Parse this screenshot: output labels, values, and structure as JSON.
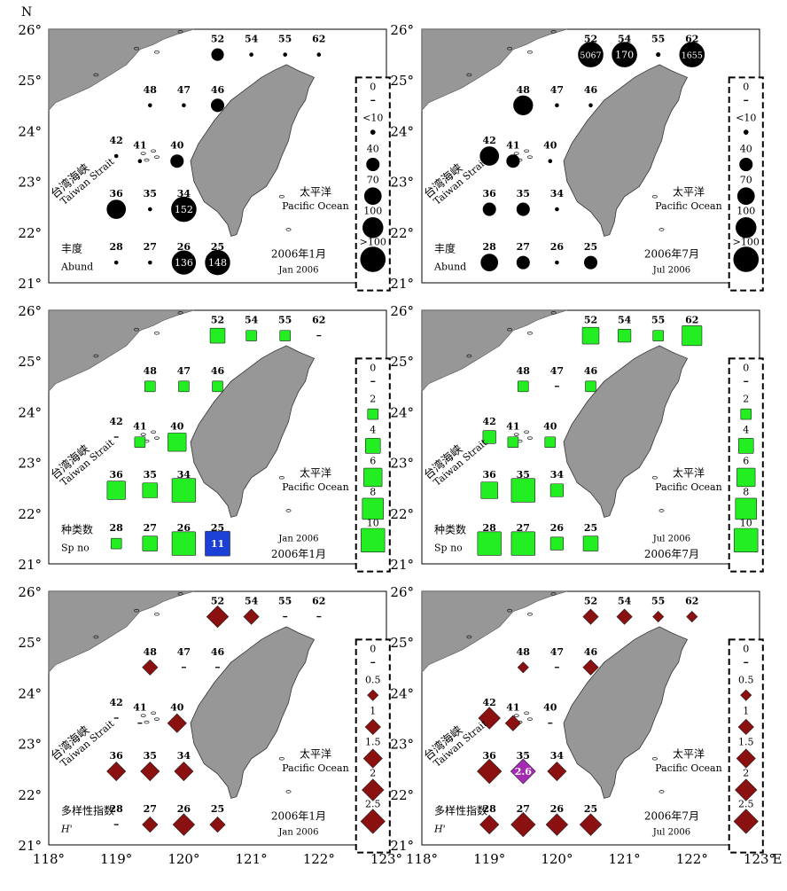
{
  "axis": {
    "n_label": "N",
    "e_label": "E",
    "lat_labels": [
      "26°",
      "25°",
      "24°",
      "23°",
      "22°",
      "21°"
    ],
    "lon_labels": [
      "118°",
      "119°",
      "120°",
      "121°",
      "122°",
      "123°"
    ]
  },
  "region_labels": {
    "strait_cn": "台湾海峡",
    "strait_en": "Taiwan Strait",
    "ocean_cn": "太平洋",
    "ocean_en": "Pacific Ocean"
  },
  "colors": {
    "land": "#979797",
    "abundance_marker": "#000000",
    "species_marker": "#22ee22",
    "diversity_marker": "#8b1010",
    "highlight_blue": "#1c3fd6",
    "highlight_purple": "#a52bb3"
  },
  "stations": [
    {
      "id": "52",
      "lon": 120.5,
      "lat": 25.5
    },
    {
      "id": "54",
      "lon": 121.0,
      "lat": 25.5
    },
    {
      "id": "55",
      "lon": 121.5,
      "lat": 25.5
    },
    {
      "id": "62",
      "lon": 122.0,
      "lat": 25.5
    },
    {
      "id": "48",
      "lon": 119.5,
      "lat": 24.5
    },
    {
      "id": "47",
      "lon": 120.0,
      "lat": 24.5
    },
    {
      "id": "46",
      "lon": 120.5,
      "lat": 24.5
    },
    {
      "id": "42",
      "lon": 119.0,
      "lat": 23.5
    },
    {
      "id": "41",
      "lon": 119.35,
      "lat": 23.4
    },
    {
      "id": "40",
      "lon": 119.9,
      "lat": 23.4
    },
    {
      "id": "36",
      "lon": 119.0,
      "lat": 22.45
    },
    {
      "id": "35",
      "lon": 119.5,
      "lat": 22.45
    },
    {
      "id": "34",
      "lon": 120.0,
      "lat": 22.45
    },
    {
      "id": "28",
      "lon": 119.0,
      "lat": 21.4
    },
    {
      "id": "27",
      "lon": 119.5,
      "lat": 21.4
    },
    {
      "id": "26",
      "lon": 120.0,
      "lat": 21.4
    },
    {
      "id": "25",
      "lon": 120.5,
      "lat": 21.4
    }
  ],
  "panels": [
    {
      "metric": "abundance",
      "shape": "circle",
      "legend_title_cn": "丰度",
      "legend_title_en": "Abund",
      "date_cn": "2006年1月",
      "date_en": "Jan 2006",
      "legend": {
        "labels": [
          "0",
          "<10",
          "40",
          "70",
          "100",
          ">100"
        ],
        "values": [
          0,
          5,
          40,
          70,
          100,
          150
        ],
        "max": 150
      },
      "values": {
        "52": 35,
        "54": 3,
        "55": 3,
        "62": 2,
        "48": 3,
        "47": 3,
        "46": 40,
        "42": 2,
        "41": 3,
        "40": 40,
        "36": 85,
        "35": 3,
        "34": 152,
        "28": 3,
        "27": 3,
        "26": 136,
        "25": 148
      },
      "annotations": [
        {
          "station": "34",
          "text": "152"
        },
        {
          "station": "26",
          "text": "136"
        },
        {
          "station": "25",
          "text": "148"
        }
      ]
    },
    {
      "metric": "abundance",
      "shape": "circle",
      "legend_title_cn": "丰度",
      "legend_title_en": "Abund",
      "date_cn": "2006年7月",
      "date_en": "Jul 2006",
      "legend": {
        "labels": [
          "0",
          "<10",
          "40",
          "70",
          "100",
          ">100"
        ],
        "values": [
          0,
          5,
          40,
          70,
          100,
          150
        ],
        "max": 150
      },
      "values": {
        "52": 5067,
        "54": 170,
        "55": 4,
        "62": 1655,
        "48": 90,
        "47": 3,
        "46": 3,
        "42": 85,
        "41": 40,
        "40": 3,
        "36": 40,
        "35": 40,
        "34": 3,
        "28": 70,
        "27": 40,
        "26": 3,
        "25": 40
      },
      "annotations": [
        {
          "station": "52",
          "text": "5067"
        },
        {
          "station": "54",
          "text": "170"
        },
        {
          "station": "62",
          "text": "1655"
        }
      ]
    },
    {
      "metric": "species",
      "shape": "square",
      "legend_title_cn": "种类数",
      "legend_title_en": "Sp no",
      "date_cn": "2006年1月",
      "date_en": "Jan 2006",
      "legend": {
        "labels": [
          "0",
          "2",
          "4",
          "6",
          "8",
          "10"
        ],
        "values": [
          0,
          2,
          4,
          6,
          8,
          10
        ],
        "max": 11
      },
      "values": {
        "52": 4,
        "54": 2,
        "55": 2,
        "62": 0,
        "48": 2,
        "47": 2,
        "46": 2,
        "42": 0,
        "41": 2,
        "40": 6,
        "36": 6,
        "35": 4,
        "34": 10,
        "28": 2,
        "27": 4,
        "26": 10,
        "25": 11
      },
      "annotations": [
        {
          "station": "25",
          "text": "11"
        }
      ]
    },
    {
      "metric": "species",
      "shape": "square",
      "legend_title_cn": "种类数",
      "legend_title_en": "Sp no",
      "date_cn": "2006年7月",
      "date_en": "Jul 2006",
      "legend": {
        "labels": [
          "0",
          "2",
          "4",
          "6",
          "8",
          "10"
        ],
        "values": [
          0,
          2,
          4,
          6,
          8,
          10
        ],
        "max": 11
      },
      "values": {
        "52": 5,
        "54": 3,
        "55": 2,
        "62": 7,
        "48": 2,
        "47": 0,
        "46": 2,
        "42": 3,
        "41": 2,
        "40": 2,
        "36": 5,
        "35": 10,
        "34": 3,
        "28": 10,
        "27": 10,
        "26": 3,
        "25": 4
      },
      "annotations": []
    },
    {
      "metric": "diversity",
      "shape": "diamond",
      "legend_title_cn": "多样性指数",
      "legend_title_en": "H'",
      "date_cn": "2006年1月",
      "date_en": "Jan 2006",
      "legend": {
        "labels": [
          "0",
          "0.5",
          "1",
          "1.5",
          "2",
          "2.5"
        ],
        "values": [
          0,
          0.5,
          1,
          1.5,
          2,
          2.5
        ],
        "max": 2.6
      },
      "values": {
        "52": 2.0,
        "54": 1.0,
        "55": 0,
        "62": 0,
        "48": 1.0,
        "47": 0,
        "46": 0,
        "42": 0,
        "41": 0,
        "40": 1.5,
        "36": 1.5,
        "35": 1.5,
        "34": 1.5,
        "28": 0,
        "27": 1.0,
        "26": 2.0,
        "25": 1.0
      },
      "annotations": []
    },
    {
      "metric": "diversity",
      "shape": "diamond",
      "legend_title_cn": "多样性指数",
      "legend_title_en": "H'",
      "date_cn": "2006年7月",
      "date_en": "Jul 2006",
      "legend": {
        "labels": [
          "0",
          "0.5",
          "1",
          "1.5",
          "2",
          "2.5"
        ],
        "values": [
          0,
          0.5,
          1,
          1.5,
          2,
          2.5
        ],
        "max": 2.6
      },
      "values": {
        "52": 1.0,
        "54": 1.0,
        "55": 0.5,
        "62": 0.5,
        "48": 0.5,
        "47": 0,
        "46": 1.0,
        "42": 2.0,
        "41": 1.0,
        "40": 0,
        "36": 2.5,
        "35": 2.6,
        "34": 1.5,
        "28": 1.5,
        "27": 2.5,
        "26": 2.0,
        "25": 2.0
      },
      "annotations": [
        {
          "station": "35",
          "text": "2.6"
        }
      ]
    }
  ]
}
